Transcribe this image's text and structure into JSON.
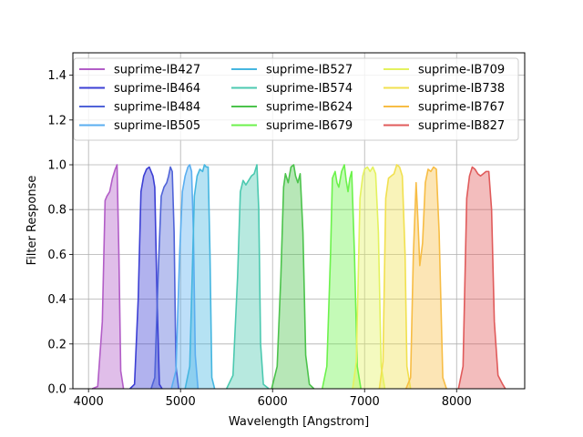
{
  "chart_data": {
    "type": "area",
    "xlabel": "Wavelength [Angstrom]",
    "ylabel": "Filter Response",
    "xlim": [
      3830,
      8740
    ],
    "ylim": [
      0.0,
      1.5
    ],
    "xticks": [
      4000,
      5000,
      6000,
      7000,
      8000
    ],
    "yticks": [
      0.0,
      0.2,
      0.4,
      0.6,
      0.8,
      1.0,
      1.2,
      1.4
    ],
    "xtick_labels": [
      "4000",
      "5000",
      "6000",
      "7000",
      "8000"
    ],
    "ytick_labels": [
      "0.0",
      "0.2",
      "0.4",
      "0.6",
      "0.8",
      "1.0",
      "1.2",
      "1.4"
    ],
    "grid": true,
    "legend_position": "upper",
    "legend_columns": 3,
    "series": [
      {
        "name": "suprime-IB427",
        "color": "#b25dc7",
        "points": [
          [
            4040,
            0
          ],
          [
            4100,
            0.01
          ],
          [
            4150,
            0.3
          ],
          [
            4180,
            0.84
          ],
          [
            4200,
            0.86
          ],
          [
            4230,
            0.88
          ],
          [
            4260,
            0.94
          ],
          [
            4290,
            0.98
          ],
          [
            4310,
            1.0
          ],
          [
            4330,
            0.6
          ],
          [
            4350,
            0.08
          ],
          [
            4380,
            0
          ]
        ]
      },
      {
        "name": "suprime-IB464",
        "color": "#3c3fd4",
        "points": [
          [
            4450,
            0
          ],
          [
            4500,
            0.02
          ],
          [
            4540,
            0.4
          ],
          [
            4570,
            0.88
          ],
          [
            4600,
            0.95
          ],
          [
            4630,
            0.98
          ],
          [
            4660,
            0.99
          ],
          [
            4680,
            0.97
          ],
          [
            4700,
            0.95
          ],
          [
            4720,
            0.9
          ],
          [
            4745,
            0.4
          ],
          [
            4770,
            0.02
          ],
          [
            4800,
            0
          ]
        ]
      },
      {
        "name": "suprime-IB484",
        "color": "#4f63d8",
        "points": [
          [
            4680,
            0
          ],
          [
            4720,
            0.05
          ],
          [
            4760,
            0.55
          ],
          [
            4790,
            0.86
          ],
          [
            4820,
            0.9
          ],
          [
            4850,
            0.92
          ],
          [
            4870,
            0.95
          ],
          [
            4890,
            0.99
          ],
          [
            4910,
            0.97
          ],
          [
            4930,
            0.7
          ],
          [
            4950,
            0.1
          ],
          [
            4980,
            0
          ]
        ]
      },
      {
        "name": "suprime-IB505",
        "color": "#5aaef0",
        "points": [
          [
            4900,
            0
          ],
          [
            4950,
            0.08
          ],
          [
            4990,
            0.6
          ],
          [
            5020,
            0.88
          ],
          [
            5050,
            0.95
          ],
          [
            5080,
            0.99
          ],
          [
            5100,
            1.0
          ],
          [
            5120,
            0.97
          ],
          [
            5140,
            0.7
          ],
          [
            5160,
            0.15
          ],
          [
            5190,
            0
          ]
        ]
      },
      {
        "name": "suprime-IB527",
        "color": "#45b6e0",
        "points": [
          [
            5050,
            0
          ],
          [
            5100,
            0.1
          ],
          [
            5150,
            0.86
          ],
          [
            5180,
            0.95
          ],
          [
            5210,
            0.98
          ],
          [
            5240,
            0.97
          ],
          [
            5260,
            1.0
          ],
          [
            5280,
            0.99
          ],
          [
            5300,
            0.99
          ],
          [
            5320,
            0.6
          ],
          [
            5340,
            0.05
          ],
          [
            5370,
            0
          ]
        ]
      },
      {
        "name": "suprime-IB574",
        "color": "#4cc9b0",
        "points": [
          [
            5500,
            0
          ],
          [
            5570,
            0.06
          ],
          [
            5620,
            0.5
          ],
          [
            5650,
            0.88
          ],
          [
            5680,
            0.93
          ],
          [
            5710,
            0.91
          ],
          [
            5740,
            0.93
          ],
          [
            5770,
            0.95
          ],
          [
            5800,
            0.96
          ],
          [
            5830,
            1.0
          ],
          [
            5850,
            0.8
          ],
          [
            5870,
            0.2
          ],
          [
            5900,
            0.02
          ],
          [
            5960,
            0
          ]
        ]
      },
      {
        "name": "suprime-IB624",
        "color": "#4cc34c",
        "points": [
          [
            5990,
            0
          ],
          [
            6050,
            0.1
          ],
          [
            6090,
            0.5
          ],
          [
            6120,
            0.9
          ],
          [
            6140,
            0.96
          ],
          [
            6170,
            0.92
          ],
          [
            6200,
            0.99
          ],
          [
            6230,
            1.0
          ],
          [
            6250,
            0.95
          ],
          [
            6275,
            0.92
          ],
          [
            6300,
            0.96
          ],
          [
            6330,
            0.7
          ],
          [
            6360,
            0.15
          ],
          [
            6400,
            0.02
          ],
          [
            6450,
            0
          ]
        ]
      },
      {
        "name": "suprime-IB679",
        "color": "#6cf24c",
        "points": [
          [
            6540,
            0
          ],
          [
            6590,
            0.1
          ],
          [
            6630,
            0.6
          ],
          [
            6650,
            0.94
          ],
          [
            6680,
            0.97
          ],
          [
            6700,
            0.92
          ],
          [
            6720,
            0.9
          ],
          [
            6750,
            0.97
          ],
          [
            6780,
            1.0
          ],
          [
            6800,
            0.93
          ],
          [
            6820,
            0.88
          ],
          [
            6840,
            0.94
          ],
          [
            6860,
            0.97
          ],
          [
            6890,
            0.6
          ],
          [
            6920,
            0.1
          ],
          [
            6960,
            0
          ]
        ]
      },
      {
        "name": "suprime-IB709",
        "color": "#e4f25e",
        "points": [
          [
            6870,
            0
          ],
          [
            6910,
            0.12
          ],
          [
            6950,
            0.85
          ],
          [
            6980,
            0.95
          ],
          [
            7000,
            0.98
          ],
          [
            7030,
            0.99
          ],
          [
            7060,
            0.97
          ],
          [
            7090,
            0.99
          ],
          [
            7120,
            0.96
          ],
          [
            7150,
            0.7
          ],
          [
            7180,
            0.1
          ],
          [
            7220,
            0
          ]
        ]
      },
      {
        "name": "suprime-IB738",
        "color": "#f1e04f",
        "points": [
          [
            7160,
            0
          ],
          [
            7200,
            0.12
          ],
          [
            7230,
            0.85
          ],
          [
            7260,
            0.94
          ],
          [
            7290,
            0.95
          ],
          [
            7320,
            0.96
          ],
          [
            7350,
            1.0
          ],
          [
            7380,
            0.99
          ],
          [
            7410,
            0.95
          ],
          [
            7440,
            0.6
          ],
          [
            7460,
            0.1
          ],
          [
            7500,
            0
          ]
        ]
      },
      {
        "name": "suprime-IB767",
        "color": "#f7bd45",
        "points": [
          [
            7450,
            0
          ],
          [
            7500,
            0.05
          ],
          [
            7530,
            0.6
          ],
          [
            7560,
            0.92
          ],
          [
            7580,
            0.75
          ],
          [
            7600,
            0.55
          ],
          [
            7630,
            0.65
          ],
          [
            7660,
            0.92
          ],
          [
            7690,
            0.98
          ],
          [
            7720,
            0.97
          ],
          [
            7750,
            0.99
          ],
          [
            7780,
            0.98
          ],
          [
            7810,
            0.7
          ],
          [
            7850,
            0.05
          ],
          [
            7890,
            0
          ]
        ]
      },
      {
        "name": "suprime-IB827",
        "color": "#e05b5b",
        "points": [
          [
            8020,
            0
          ],
          [
            8070,
            0.1
          ],
          [
            8110,
            0.85
          ],
          [
            8140,
            0.95
          ],
          [
            8170,
            0.99
          ],
          [
            8200,
            0.98
          ],
          [
            8230,
            0.96
          ],
          [
            8260,
            0.95
          ],
          [
            8290,
            0.96
          ],
          [
            8320,
            0.97
          ],
          [
            8350,
            0.97
          ],
          [
            8380,
            0.8
          ],
          [
            8410,
            0.3
          ],
          [
            8450,
            0.06
          ],
          [
            8500,
            0.02
          ],
          [
            8530,
            0
          ]
        ]
      }
    ]
  }
}
